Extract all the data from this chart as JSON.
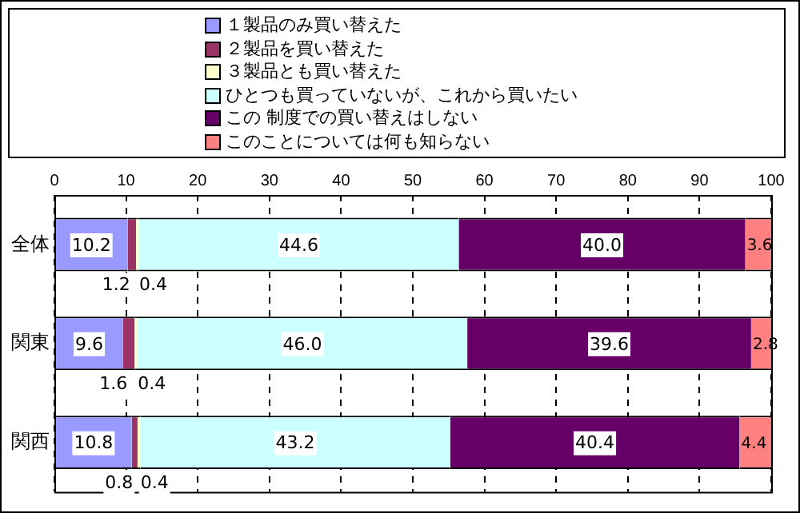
{
  "chart_data": {
    "type": "bar",
    "orientation": "horizontal",
    "stacked": true,
    "categories": [
      "全体",
      "関東",
      "関西"
    ],
    "series": [
      {
        "name": "１製品のみ買い替えた",
        "color": "#9999ff",
        "values": [
          10.2,
          9.6,
          10.8
        ],
        "value_labels": [
          "10.2",
          "9.6",
          "10.8"
        ]
      },
      {
        "name": "２製品を買い替えた",
        "color": "#993366",
        "values": [
          1.2,
          1.6,
          0.8
        ],
        "value_labels": [
          "1.2",
          "1.6",
          "0.8"
        ]
      },
      {
        "name": "３製品とも買い替えた",
        "color": "#ffffcc",
        "values": [
          0.4,
          0.4,
          0.4
        ],
        "value_labels": [
          "0.4",
          "0.4",
          "0.4"
        ]
      },
      {
        "name": "ひとつも買っていないが、これから買いたい",
        "color": "#ccffff",
        "values": [
          44.6,
          46.0,
          43.2
        ],
        "value_labels": [
          "44.6",
          "46.0",
          "43.2"
        ]
      },
      {
        "name": "この 制度での買い替えはしない",
        "color": "#660066",
        "values": [
          40.0,
          39.6,
          40.4
        ],
        "value_labels": [
          "40.0",
          "39.6",
          "40.4"
        ]
      },
      {
        "name": "このことについては何も知らない",
        "color": "#ff8080",
        "values": [
          3.6,
          2.8,
          4.4
        ],
        "value_labels": [
          "3.6",
          "2.8",
          "4.4"
        ]
      }
    ],
    "xlim": [
      0,
      100
    ],
    "xticks": [
      0,
      10,
      20,
      30,
      40,
      50,
      60,
      70,
      80,
      90,
      100
    ],
    "grid": "x",
    "legend": "top"
  }
}
